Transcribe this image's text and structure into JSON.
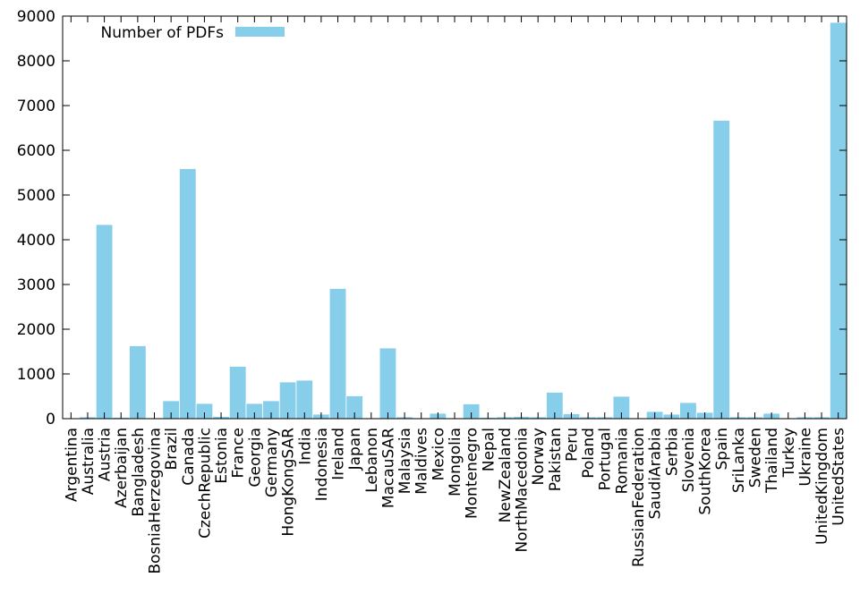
{
  "chart_data": {
    "type": "bar",
    "categories": [
      "Argentina",
      "Australia",
      "Austria",
      "Azerbaijan",
      "Bangladesh",
      "BosniaHerzegovina",
      "Brazil",
      "Canada",
      "CzechRepublic",
      "Estonia",
      "France",
      "Georgia",
      "Germany",
      "HongKongSAR",
      "India",
      "Indonesia",
      "Ireland",
      "Japan",
      "Lebanon",
      "MacauSAR",
      "Malaysia",
      "Maldives",
      "Mexico",
      "Mongolia",
      "Montenegro",
      "Nepal",
      "NewZealand",
      "NorthMacedonia",
      "Norway",
      "Pakistan",
      "Peru",
      "Poland",
      "Portugal",
      "Romania",
      "RussianFederation",
      "SaudiArabia",
      "Serbia",
      "Slovenia",
      "SouthKorea",
      "Spain",
      "SriLanka",
      "Sweden",
      "Thailand",
      "Turkey",
      "Ukraine",
      "UnitedKingdom",
      "UnitedStates"
    ],
    "series": [
      {
        "name": "Number of PDFs",
        "values": [
          10,
          40,
          4340,
          30,
          1630,
          20,
          400,
          5590,
          340,
          50,
          1170,
          340,
          400,
          820,
          860,
          100,
          2910,
          510,
          20,
          1580,
          40,
          20,
          120,
          20,
          330,
          30,
          40,
          50,
          40,
          590,
          110,
          40,
          40,
          500,
          20,
          160,
          100,
          360,
          140,
          6670,
          40,
          40,
          120,
          20,
          40,
          40,
          8860
        ]
      }
    ],
    "title": "",
    "xlabel": "",
    "ylabel": "",
    "ylim": [
      0,
      9000
    ],
    "yticks": [
      "0",
      "1000",
      "2000",
      "3000",
      "4000",
      "5000",
      "6000",
      "7000",
      "8000",
      "9000"
    ],
    "legend_position": "top-left",
    "grid": false,
    "bar_color": "#87ceeb"
  }
}
